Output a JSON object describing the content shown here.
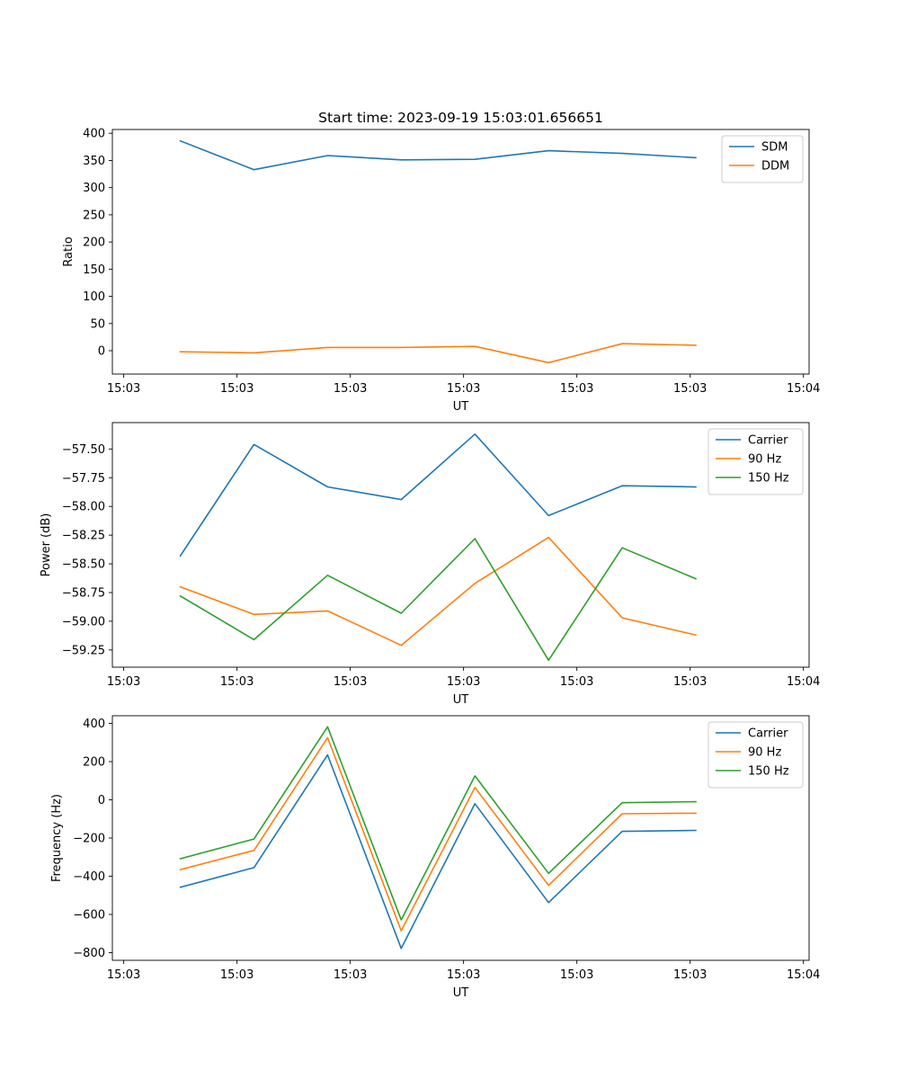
{
  "colors": {
    "c0": "#1f77b4",
    "c1": "#ff7f0e",
    "c2": "#2ca02c"
  },
  "chart_data": [
    {
      "type": "line",
      "title": "Start time: 2023-09-19 15:03:01.656651",
      "xlabel": "UT",
      "ylabel": "Ratio",
      "x": [
        0.5,
        1.15,
        1.8,
        2.45,
        3.1,
        3.75,
        4.4,
        5.05
      ],
      "xlim": [
        -0.1,
        6.05
      ],
      "xticks": [
        0,
        1,
        2,
        3,
        4,
        5,
        6
      ],
      "xticklabels": [
        "15:03",
        "15:03",
        "15:03",
        "15:03",
        "15:03",
        "15:03",
        "15:04"
      ],
      "ylim": [
        -43,
        407
      ],
      "yticks": [
        0,
        50,
        100,
        150,
        200,
        250,
        300,
        350,
        400
      ],
      "yticklabels": [
        "0",
        "50",
        "100",
        "150",
        "200",
        "250",
        "300",
        "350",
        "400"
      ],
      "legend": "top-right",
      "series": [
        {
          "name": "SDM",
          "color": "#1f77b4",
          "values": [
            386,
            333,
            359,
            351,
            352,
            368,
            363,
            355
          ]
        },
        {
          "name": "DDM",
          "color": "#ff7f0e",
          "values": [
            -2,
            -4,
            6,
            6,
            8,
            -22,
            13,
            10
          ]
        }
      ]
    },
    {
      "type": "line",
      "title": "",
      "xlabel": "UT",
      "ylabel": "Power (dB)",
      "x": [
        0.5,
        1.15,
        1.8,
        2.45,
        3.1,
        3.75,
        4.4,
        5.05
      ],
      "xlim": [
        -0.1,
        6.05
      ],
      "xticks": [
        0,
        1,
        2,
        3,
        4,
        5,
        6
      ],
      "xticklabels": [
        "15:03",
        "15:03",
        "15:03",
        "15:03",
        "15:03",
        "15:03",
        "15:04"
      ],
      "ylim": [
        -59.4,
        -57.27
      ],
      "yticks": [
        -59.25,
        -59.0,
        -58.75,
        -58.5,
        -58.25,
        -58.0,
        -57.75,
        -57.5
      ],
      "yticklabels": [
        "−59.25",
        "−59.00",
        "−58.75",
        "−58.50",
        "−58.25",
        "−58.00",
        "−57.75",
        "−57.50"
      ],
      "legend": "top-right",
      "series": [
        {
          "name": "Carrier",
          "color": "#1f77b4",
          "values": [
            -58.43,
            -57.46,
            -57.83,
            -57.94,
            -57.37,
            -58.08,
            -57.82,
            -57.83
          ]
        },
        {
          "name": "90 Hz",
          "color": "#ff7f0e",
          "values": [
            -58.7,
            -58.94,
            -58.91,
            -59.21,
            -58.67,
            -58.27,
            -58.97,
            -59.12
          ]
        },
        {
          "name": "150 Hz",
          "color": "#2ca02c",
          "values": [
            -58.78,
            -59.16,
            -58.6,
            -58.93,
            -58.28,
            -59.34,
            -58.36,
            -58.63
          ]
        }
      ]
    },
    {
      "type": "line",
      "title": "",
      "xlabel": "UT",
      "ylabel": "Frequency (Hz)",
      "x": [
        0.5,
        1.15,
        1.8,
        2.45,
        3.1,
        3.75,
        4.4,
        5.05
      ],
      "xlim": [
        -0.1,
        6.05
      ],
      "xticks": [
        0,
        1,
        2,
        3,
        4,
        5,
        6
      ],
      "xticklabels": [
        "15:03",
        "15:03",
        "15:03",
        "15:03",
        "15:03",
        "15:03",
        "15:04"
      ],
      "ylim": [
        -840,
        440
      ],
      "yticks": [
        -800,
        -600,
        -400,
        -200,
        0,
        200,
        400
      ],
      "yticklabels": [
        "−800",
        "−600",
        "−400",
        "−200",
        "0",
        "200",
        "400"
      ],
      "legend": "top-right",
      "series": [
        {
          "name": "Carrier",
          "color": "#1f77b4",
          "values": [
            -458,
            -355,
            235,
            -778,
            -20,
            -538,
            -165,
            -160
          ]
        },
        {
          "name": "90 Hz",
          "color": "#ff7f0e",
          "values": [
            -365,
            -265,
            325,
            -685,
            65,
            -448,
            -73,
            -70
          ]
        },
        {
          "name": "150 Hz",
          "color": "#2ca02c",
          "values": [
            -308,
            -205,
            382,
            -628,
            125,
            -385,
            -15,
            -10
          ]
        }
      ]
    }
  ]
}
